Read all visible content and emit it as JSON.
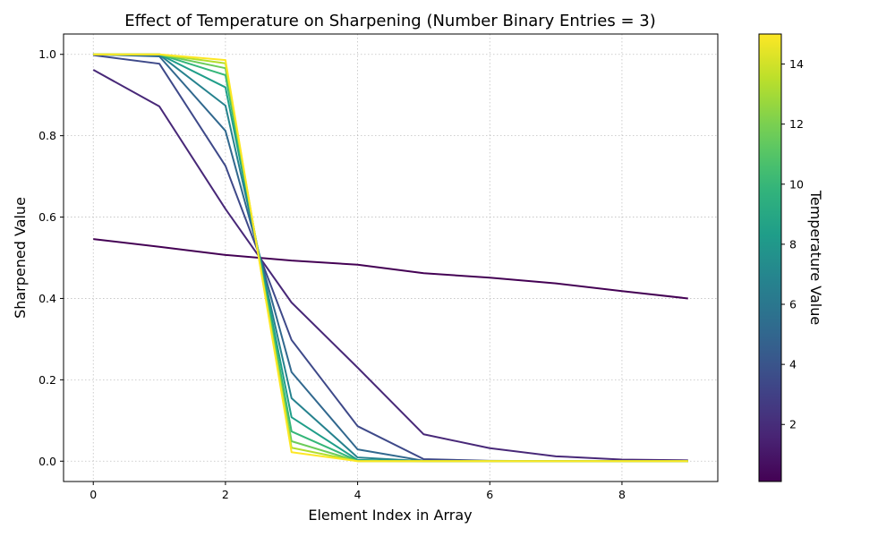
{
  "chart_data": {
    "type": "line",
    "title": "Effect of Temperature on Sharpening (Number Binary Entries = 3)",
    "xlabel": "Element Index in Array",
    "ylabel": "Sharpened Value",
    "xlim": [
      -0.45,
      9.45
    ],
    "ylim": [
      -0.05,
      1.05
    ],
    "xticks": [
      0,
      2,
      4,
      6,
      8
    ],
    "yticks": [
      0.0,
      0.2,
      0.4,
      0.6,
      0.8,
      1.0
    ],
    "grid": true,
    "colormap": "viridis",
    "colorbar": {
      "label": "Temperature Value",
      "range": [
        0.1,
        15
      ],
      "ticks": [
        2,
        4,
        6,
        8,
        10,
        12,
        14
      ]
    },
    "x": [
      0,
      1,
      2,
      3,
      4,
      5,
      6,
      7,
      8,
      9
    ],
    "series": [
      {
        "temperature": 0.1,
        "values": [
          0.546,
          0.527,
          0.507,
          0.493,
          0.483,
          0.462,
          0.451,
          0.437,
          0.418,
          0.4
        ]
      },
      {
        "temperature": 1.75,
        "values": [
          0.962,
          0.872,
          0.62,
          0.39,
          0.23,
          0.066,
          0.032,
          0.012,
          0.004,
          0.002
        ]
      },
      {
        "temperature": 3.4,
        "values": [
          0.998,
          0.977,
          0.726,
          0.298,
          0.086,
          0.005,
          0.001,
          0.0,
          0.0,
          0.0
        ]
      },
      {
        "temperature": 5.05,
        "values": [
          1.0,
          0.995,
          0.812,
          0.219,
          0.029,
          0.001,
          0.0,
          0.0,
          0.0,
          0.0
        ]
      },
      {
        "temperature": 6.7,
        "values": [
          1.0,
          0.999,
          0.874,
          0.155,
          0.009,
          0.0,
          0.0,
          0.0,
          0.0,
          0.0
        ]
      },
      {
        "temperature": 8.35,
        "values": [
          1.0,
          1.0,
          0.919,
          0.108,
          0.003,
          0.0,
          0.0,
          0.0,
          0.0,
          0.0
        ]
      },
      {
        "temperature": 10.0,
        "values": [
          1.0,
          1.0,
          0.949,
          0.073,
          0.001,
          0.0,
          0.0,
          0.0,
          0.0,
          0.0
        ]
      },
      {
        "temperature": 11.65,
        "values": [
          1.0,
          1.0,
          0.966,
          0.049,
          0.0,
          0.0,
          0.0,
          0.0,
          0.0,
          0.0
        ]
      },
      {
        "temperature": 13.3,
        "values": [
          1.0,
          1.0,
          0.978,
          0.033,
          0.0,
          0.0,
          0.0,
          0.0,
          0.0,
          0.0
        ]
      },
      {
        "temperature": 15.0,
        "values": [
          1.0,
          1.0,
          0.986,
          0.022,
          0.0,
          0.0,
          0.0,
          0.0,
          0.0,
          0.0
        ]
      }
    ]
  }
}
